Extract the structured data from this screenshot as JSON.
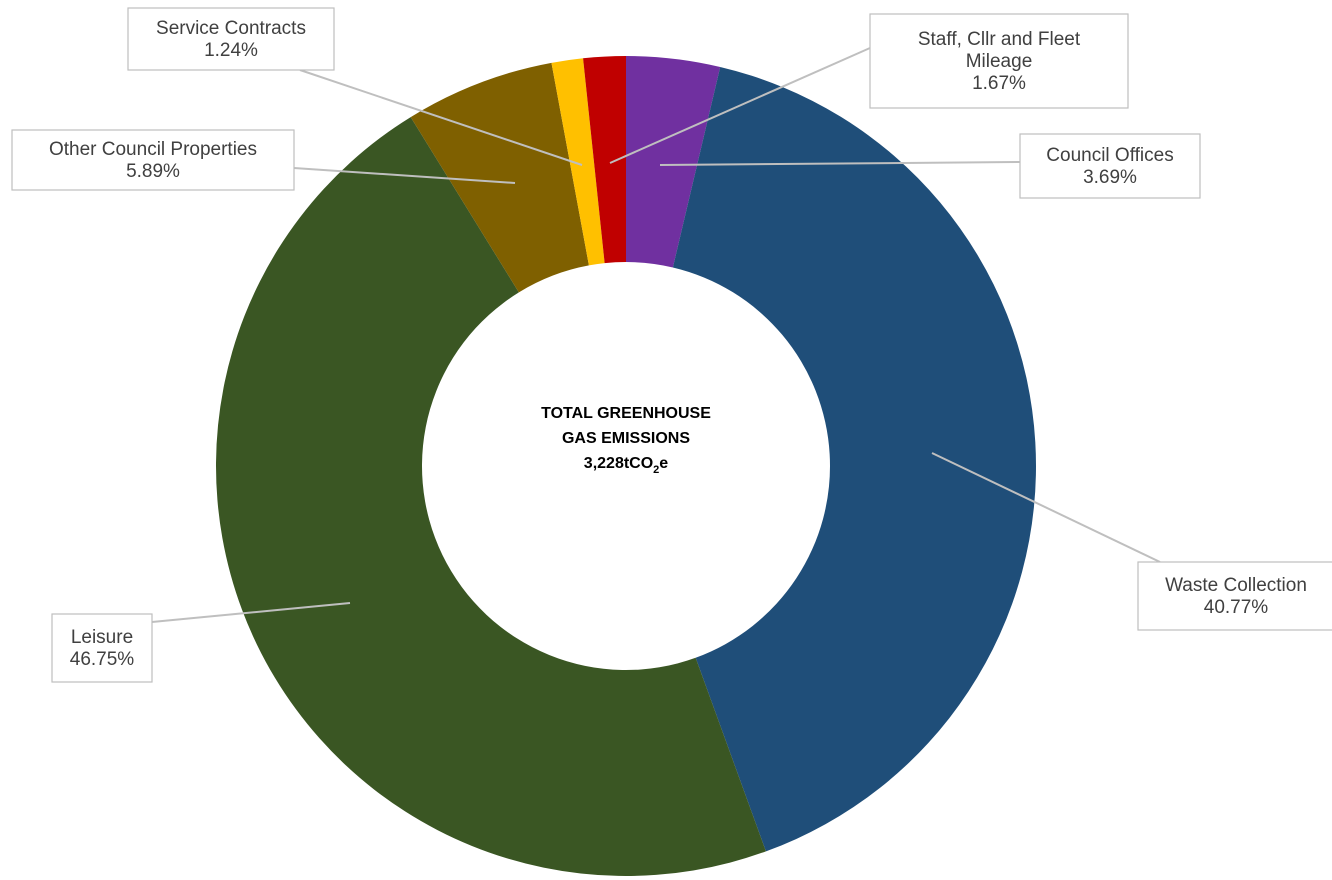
{
  "chart_data": {
    "type": "pie",
    "donut": true,
    "center_text": {
      "line1": "TOTAL GREENHOUSE",
      "line2": "GAS EMISSIONS",
      "total_value": "3,228tCO",
      "total_subscript": "2",
      "total_suffix": "e"
    },
    "slices": [
      {
        "name": "Council Offices",
        "value": 3.69,
        "label": "3.69%",
        "color": "#7030A0"
      },
      {
        "name": "Waste Collection",
        "value": 40.77,
        "label": "40.77%",
        "color": "#1F4E79"
      },
      {
        "name": "Leisure",
        "value": 46.75,
        "label": "46.75%",
        "color": "#3A5623"
      },
      {
        "name": "Other Council Properties",
        "value": 5.89,
        "label": "5.89%",
        "color": "#7F6000"
      },
      {
        "name": "Service Contracts",
        "value": 1.24,
        "label": "1.24%",
        "color": "#FFC000"
      },
      {
        "name": "Staff, Cllr and Fleet Mileage",
        "value": 1.67,
        "label": "1.67%",
        "color": "#C00000"
      }
    ]
  }
}
